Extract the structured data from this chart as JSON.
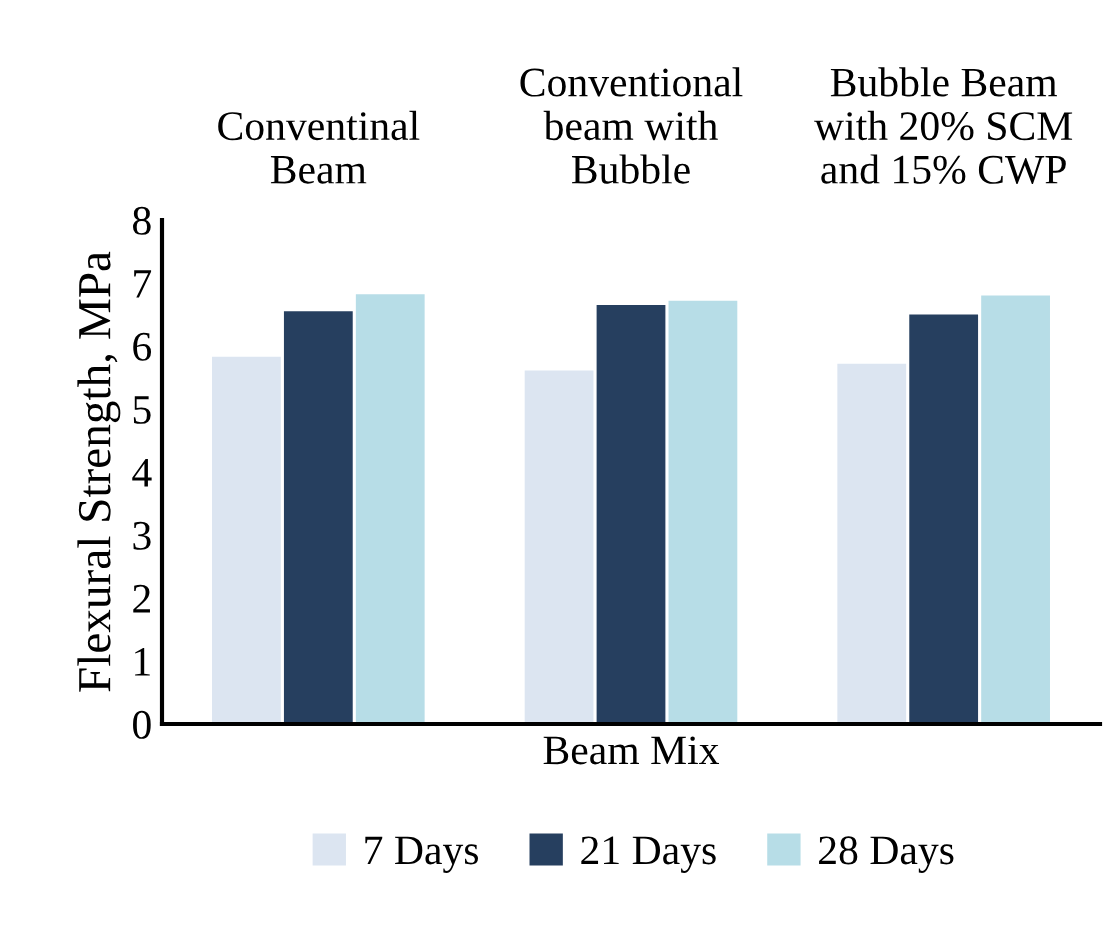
{
  "chart_data": {
    "type": "bar",
    "categories": [
      "Conventinal\nBeam",
      "Conventional\nbeam with\nBubble",
      "Bubble Beam\nwith 20% SCM\nand 15% CWP"
    ],
    "xlabel": "Beam Mix",
    "ylabel": "Flexural Strength, MPa",
    "ylim": [
      0,
      8
    ],
    "yticks": [
      0,
      1,
      2,
      3,
      4,
      5,
      6,
      7,
      8
    ],
    "grid": false,
    "legend": "bottom",
    "series": [
      {
        "name": "7 Days",
        "color": "#dce5f1",
        "values": [
          5.83,
          5.61,
          5.72
        ]
      },
      {
        "name": "21 Days",
        "color": "#263f5f",
        "values": [
          6.55,
          6.65,
          6.5
        ]
      },
      {
        "name": "28 Days",
        "color": "#b7dde7",
        "values": [
          6.82,
          6.72,
          6.8
        ]
      }
    ]
  }
}
